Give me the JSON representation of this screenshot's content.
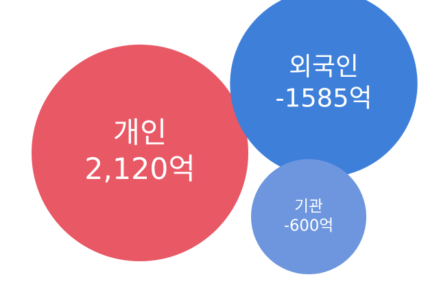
{
  "chart_data": {
    "type": "bubble",
    "unit": "억",
    "series": [
      {
        "name": "개인",
        "value": 2120,
        "value_label": "2,120억",
        "color": "#E85865"
      },
      {
        "name": "외국인",
        "value": -1585,
        "value_label": "-1585억",
        "color": "#3E7FD9"
      },
      {
        "name": "기관",
        "value": -600,
        "value_label": "-600억",
        "color": "#6D96DE"
      }
    ]
  }
}
